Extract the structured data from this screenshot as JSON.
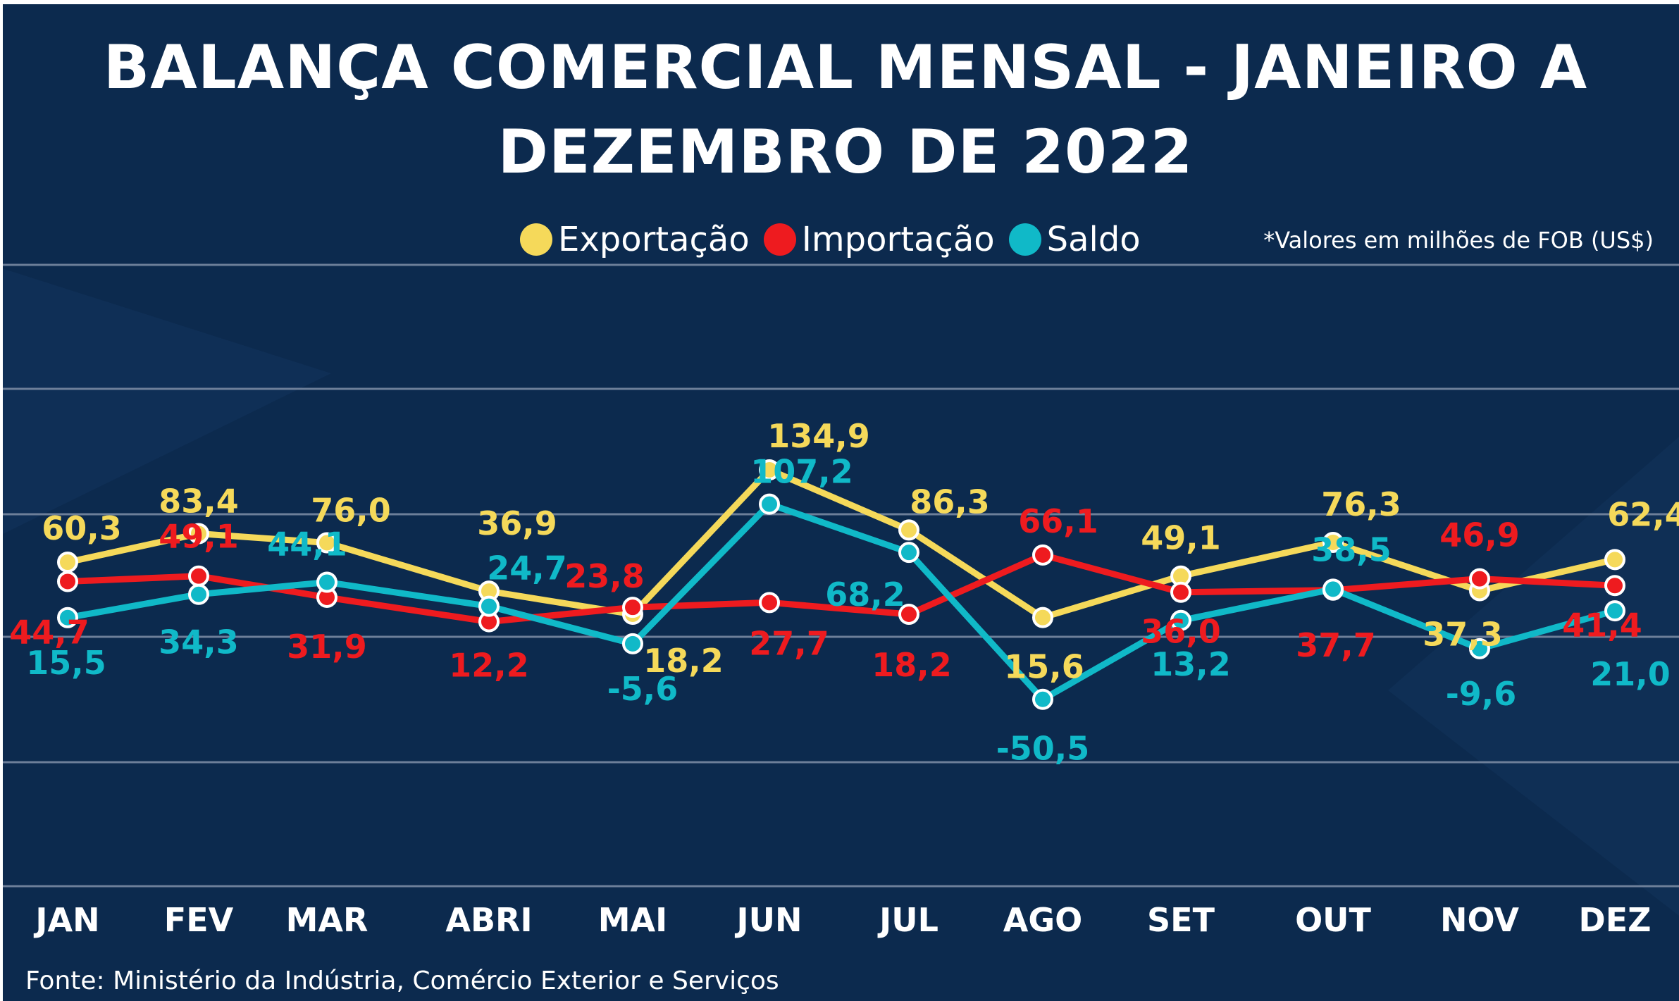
{
  "title": "BALANÇA COMERCIAL MENSAL - JANEIRO A DEZEMBRO DE 2022",
  "note": "*Valores em milhões de FOB (US$)",
  "source": "Fonte: Ministério da Indústria, Comércio Exterior e Serviços",
  "colors": {
    "background": "#0c2a4e",
    "exportacao": "#f5d95a",
    "importacao": "#ee1b1f",
    "saldo": "#10b9c8",
    "gridline": "#6d7f99"
  },
  "legend": {
    "exportacao": "Exportação",
    "importacao": "Importação",
    "saldo": "Saldo"
  },
  "chart_data": {
    "type": "line",
    "title": "BALANÇA COMERCIAL MENSAL - JANEIRO A DEZEMBRO DE 2022",
    "categories": [
      "JAN",
      "FEV",
      "MAR",
      "ABRI",
      "MAI",
      "JUN",
      "JUL",
      "AGO",
      "SET",
      "OUT",
      "NOV",
      "DEZ"
    ],
    "ylim": [
      -100,
      140
    ],
    "grid": true,
    "legend_position": "top-center",
    "series": [
      {
        "name": "Exportação",
        "values": [
          60.3,
          83.4,
          76.0,
          36.9,
          18.2,
          134.9,
          86.3,
          15.6,
          49.1,
          76.3,
          37.3,
          62.4
        ],
        "labels": [
          "60,3",
          "83,4",
          "76,0",
          "36,9",
          "18,2",
          "134,9",
          "86,3",
          "15,6",
          "49,1",
          "76,3",
          "37,3",
          "62,4"
        ]
      },
      {
        "name": "Importação",
        "values": [
          44.7,
          49.1,
          31.9,
          12.2,
          23.8,
          27.7,
          18.2,
          66.1,
          36.0,
          37.7,
          46.9,
          41.4
        ],
        "labels": [
          "44,7",
          "49,1",
          "31,9",
          "12,2",
          "23,8",
          "27,7",
          "18,2",
          "66,1",
          "36,0",
          "37,7",
          "46,9",
          "41,4"
        ]
      },
      {
        "name": "Saldo",
        "values": [
          15.5,
          34.3,
          44.1,
          24.7,
          -5.6,
          107.2,
          68.2,
          -50.5,
          13.2,
          38.5,
          -9.6,
          21.0
        ],
        "labels": [
          "15,5",
          "34,3",
          "44,1",
          "24,7",
          "-5,6",
          "107,2",
          "68,2",
          "-50,5",
          "13,2",
          "38,5",
          "-9,6",
          "21,0"
        ]
      }
    ]
  }
}
